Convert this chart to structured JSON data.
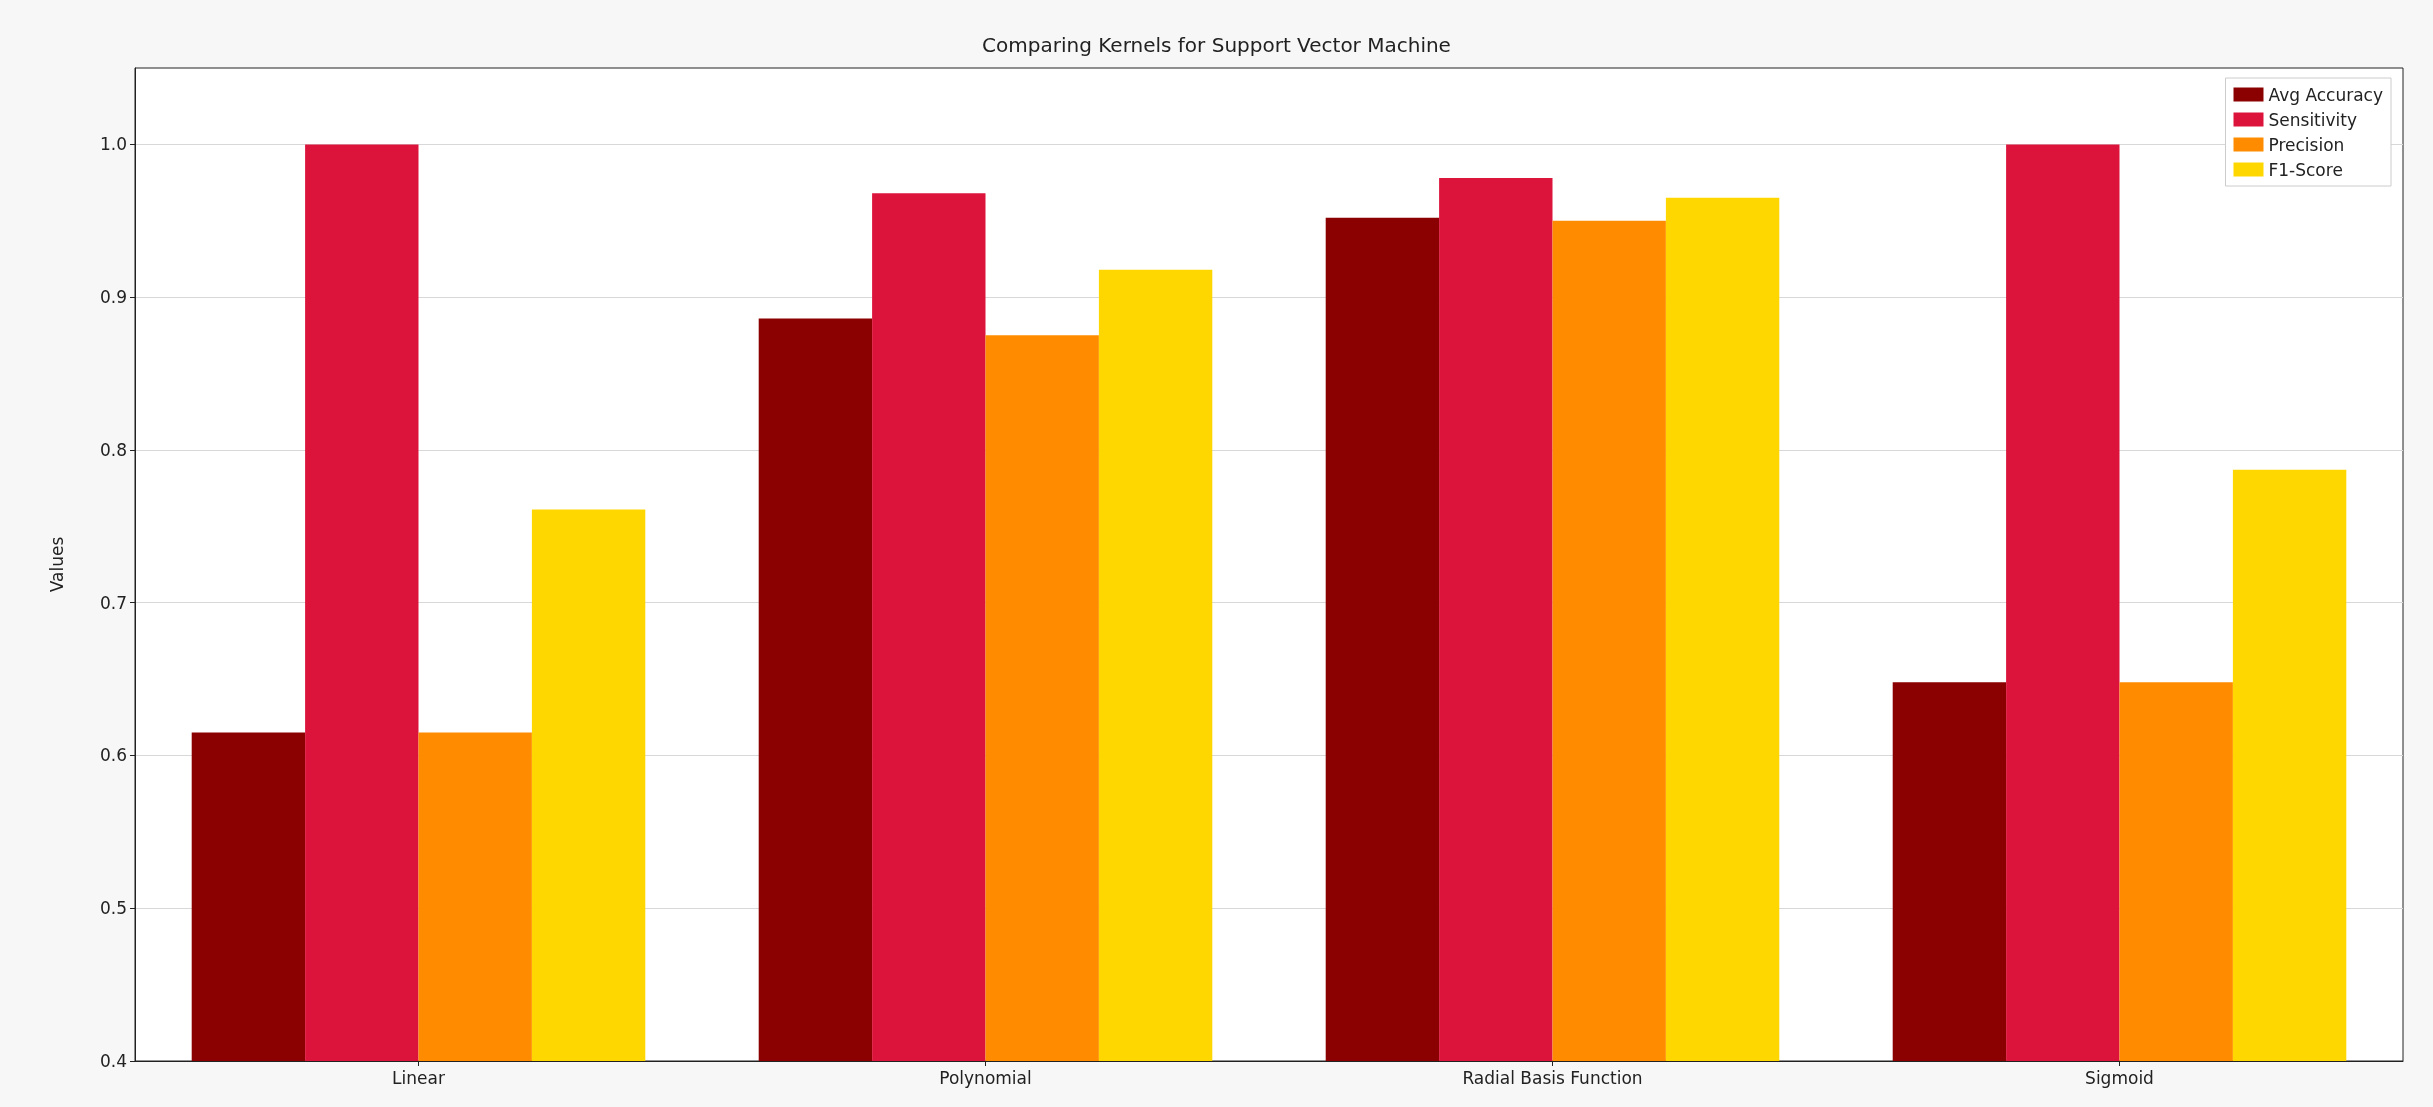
{
  "chart_data": {
    "type": "bar",
    "title": "Comparing Kernels for Support Vector Machine",
    "ylabel": "Values",
    "categories": [
      "Linear",
      "Polynomial",
      "Radial Basis Function",
      "Sigmoid"
    ],
    "series": [
      {
        "name": "Avg Accuracy",
        "color": "#8b0000",
        "values": [
          0.615,
          0.886,
          0.952,
          0.648
        ]
      },
      {
        "name": "Sensitivity",
        "color": "#dc143c",
        "values": [
          1.0,
          0.968,
          0.978,
          1.0
        ]
      },
      {
        "name": "Precision",
        "color": "#ff8c00",
        "values": [
          0.615,
          0.875,
          0.95,
          0.648
        ]
      },
      {
        "name": "F1-Score",
        "color": "#ffd700",
        "values": [
          0.761,
          0.918,
          0.965,
          0.787
        ]
      }
    ],
    "ylim": [
      0.4,
      1.05
    ],
    "yticks": [
      {
        "value": 0.4,
        "label": "0.4"
      },
      {
        "value": 0.5,
        "label": "0.5"
      },
      {
        "value": 0.6,
        "label": "0.6"
      },
      {
        "value": 0.7,
        "label": "0.7"
      },
      {
        "value": 0.8,
        "label": "0.8"
      },
      {
        "value": 0.9,
        "label": "0.9"
      },
      {
        "value": 1,
        "label": "1.0"
      }
    ],
    "grid": "y",
    "legend": "top right"
  }
}
